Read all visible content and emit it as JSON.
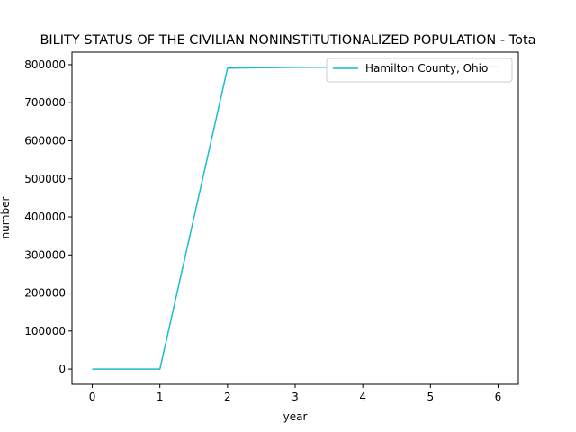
{
  "chart_data": {
    "type": "line",
    "title": "BILITY STATUS OF THE CIVILIAN NONINSTITUTIONALIZED POPULATION - Tota",
    "xlabel": "year",
    "ylabel": "number",
    "x_ticks": [
      "0",
      "1",
      "2",
      "3",
      "4",
      "5",
      "6"
    ],
    "y_ticks": [
      "0",
      "100000",
      "200000",
      "300000",
      "400000",
      "500000",
      "600000",
      "700000",
      "800000"
    ],
    "xlim": [
      -0.3,
      6.3
    ],
    "ylim": [
      -40000,
      833000
    ],
    "grid": false,
    "legend_position": "top-right",
    "series": [
      {
        "name": "Hamilton County, Ohio",
        "color": "#17becf",
        "x": [
          0,
          1,
          2,
          3,
          4,
          5,
          6
        ],
        "y": [
          0,
          0,
          791000,
          793000,
          794000,
          794000,
          795000
        ]
      }
    ]
  }
}
